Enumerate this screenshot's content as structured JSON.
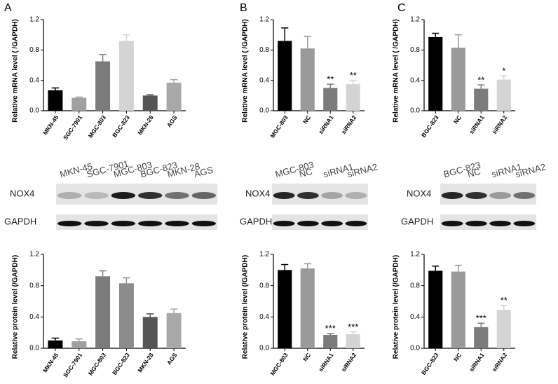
{
  "panel_labels": [
    "A",
    "B",
    "C"
  ],
  "blots": [
    {
      "lanes": [
        "MKN-45",
        "SGC-7901",
        "MGC-803",
        "BGC-823",
        "MKN-28",
        "AGS"
      ],
      "rows": [
        "NOX4",
        "GAPDH"
      ]
    },
    {
      "lanes": [
        "MGC-803",
        "NC",
        "siRNA1",
        "siRNA2"
      ],
      "rows": [
        "NOX4",
        "GAPDH"
      ]
    },
    {
      "lanes": [
        "BGC-823",
        "NC",
        "siRNA1",
        "siRNA2"
      ],
      "rows": [
        "NOX4",
        "GAPDH"
      ]
    }
  ],
  "chart_data": [
    {
      "type": "bar",
      "y_label": "Relative mRNA level ( /GAPDH)",
      "categories": [
        "MKN-45",
        "SGC-7901",
        "MGC-803",
        "BGC-823",
        "MKN-28",
        "AGS"
      ],
      "values": [
        0.27,
        0.17,
        0.65,
        0.92,
        0.2,
        0.37
      ],
      "errors": [
        0.03,
        0.01,
        0.09,
        0.08,
        0.01,
        0.04
      ],
      "colors": [
        "#000000",
        "#a0a0a0",
        "#7c7c7c",
        "#d4d4d4",
        "#555555",
        "#a8a8a8"
      ],
      "ylim": [
        0,
        1.2
      ],
      "yticks": [
        {
          "value": 0,
          "label": "0.0"
        },
        0.4,
        0.8,
        1.2
      ]
    },
    {
      "type": "bar",
      "y_label": "Relative mRNA level ( /GAPDH)",
      "categories": [
        "MGC-803",
        "NC",
        "siRNA1",
        "siRNA2"
      ],
      "values": [
        0.92,
        0.82,
        0.3,
        0.35
      ],
      "errors": [
        0.17,
        0.16,
        0.05,
        0.05
      ],
      "annotations": [
        null,
        null,
        "**",
        "**"
      ],
      "colors": [
        "#000000",
        "#9a9a9a",
        "#7c7c7c",
        "#d4d4d4"
      ],
      "ylim": [
        0,
        1.2
      ],
      "yticks": [
        {
          "value": 0,
          "label": "0.0"
        },
        0.4,
        0.8,
        1.2
      ]
    },
    {
      "type": "bar",
      "y_label": "Relative mRNA level ( /GAPDH)",
      "categories": [
        "BGC-823",
        "NC",
        "siRNA1",
        "siRNA2"
      ],
      "values": [
        0.97,
        0.83,
        0.29,
        0.41
      ],
      "errors": [
        0.05,
        0.17,
        0.05,
        0.05
      ],
      "annotations": [
        null,
        null,
        "**",
        "*"
      ],
      "colors": [
        "#000000",
        "#9a9a9a",
        "#7c7c7c",
        "#d4d4d4"
      ],
      "ylim": [
        0,
        1.2
      ],
      "yticks": [
        {
          "value": 0,
          "label": "0.0"
        },
        0.4,
        0.8,
        1.2
      ]
    },
    {
      "type": "bar",
      "y_label": "Relative protein level (/GAPDH)",
      "categories": [
        "MKN-45",
        "SGC-7901",
        "MGC-803",
        "BGC-823",
        "MKN-28",
        "AGS"
      ],
      "values": [
        0.1,
        0.09,
        0.92,
        0.83,
        0.4,
        0.45
      ],
      "errors": [
        0.03,
        0.03,
        0.07,
        0.07,
        0.04,
        0.05
      ],
      "colors": [
        "#000000",
        "#a0a0a0",
        "#7c7c7c",
        "#8c8c8c",
        "#555555",
        "#a8a8a8"
      ],
      "ylim": [
        0,
        1.2
      ],
      "yticks": [
        {
          "value": 0,
          "label": "0.0"
        },
        0.4,
        0.8,
        1.2
      ]
    },
    {
      "type": "bar",
      "y_label": "Relative protein level (/GAPDH)",
      "categories": [
        "MGC-803",
        "NC",
        "siRNA1",
        "siRNA2"
      ],
      "values": [
        1.0,
        1.02,
        0.17,
        0.18
      ],
      "errors": [
        0.07,
        0.06,
        0.02,
        0.03
      ],
      "annotations": [
        null,
        null,
        "***",
        "***"
      ],
      "colors": [
        "#000000",
        "#9a9a9a",
        "#7c7c7c",
        "#d4d4d4"
      ],
      "ylim": [
        0,
        1.2
      ],
      "yticks": [
        {
          "value": 0,
          "label": "0.0"
        },
        0.4,
        0.8,
        1.2
      ]
    },
    {
      "type": "bar",
      "y_label": "Relative protein level (/GAPDH)",
      "categories": [
        "BGC-823",
        "NC",
        "siRNA1",
        "siRNA2"
      ],
      "values": [
        0.99,
        0.98,
        0.27,
        0.49
      ],
      "errors": [
        0.06,
        0.08,
        0.05,
        0.06
      ],
      "annotations": [
        null,
        null,
        "***",
        "**"
      ],
      "colors": [
        "#000000",
        "#9a9a9a",
        "#7c7c7c",
        "#d4d4d4"
      ],
      "ylim": [
        0,
        1.2
      ],
      "yticks": [
        {
          "value": 0,
          "label": "0.0"
        },
        0.4,
        0.8,
        1.2
      ]
    }
  ]
}
